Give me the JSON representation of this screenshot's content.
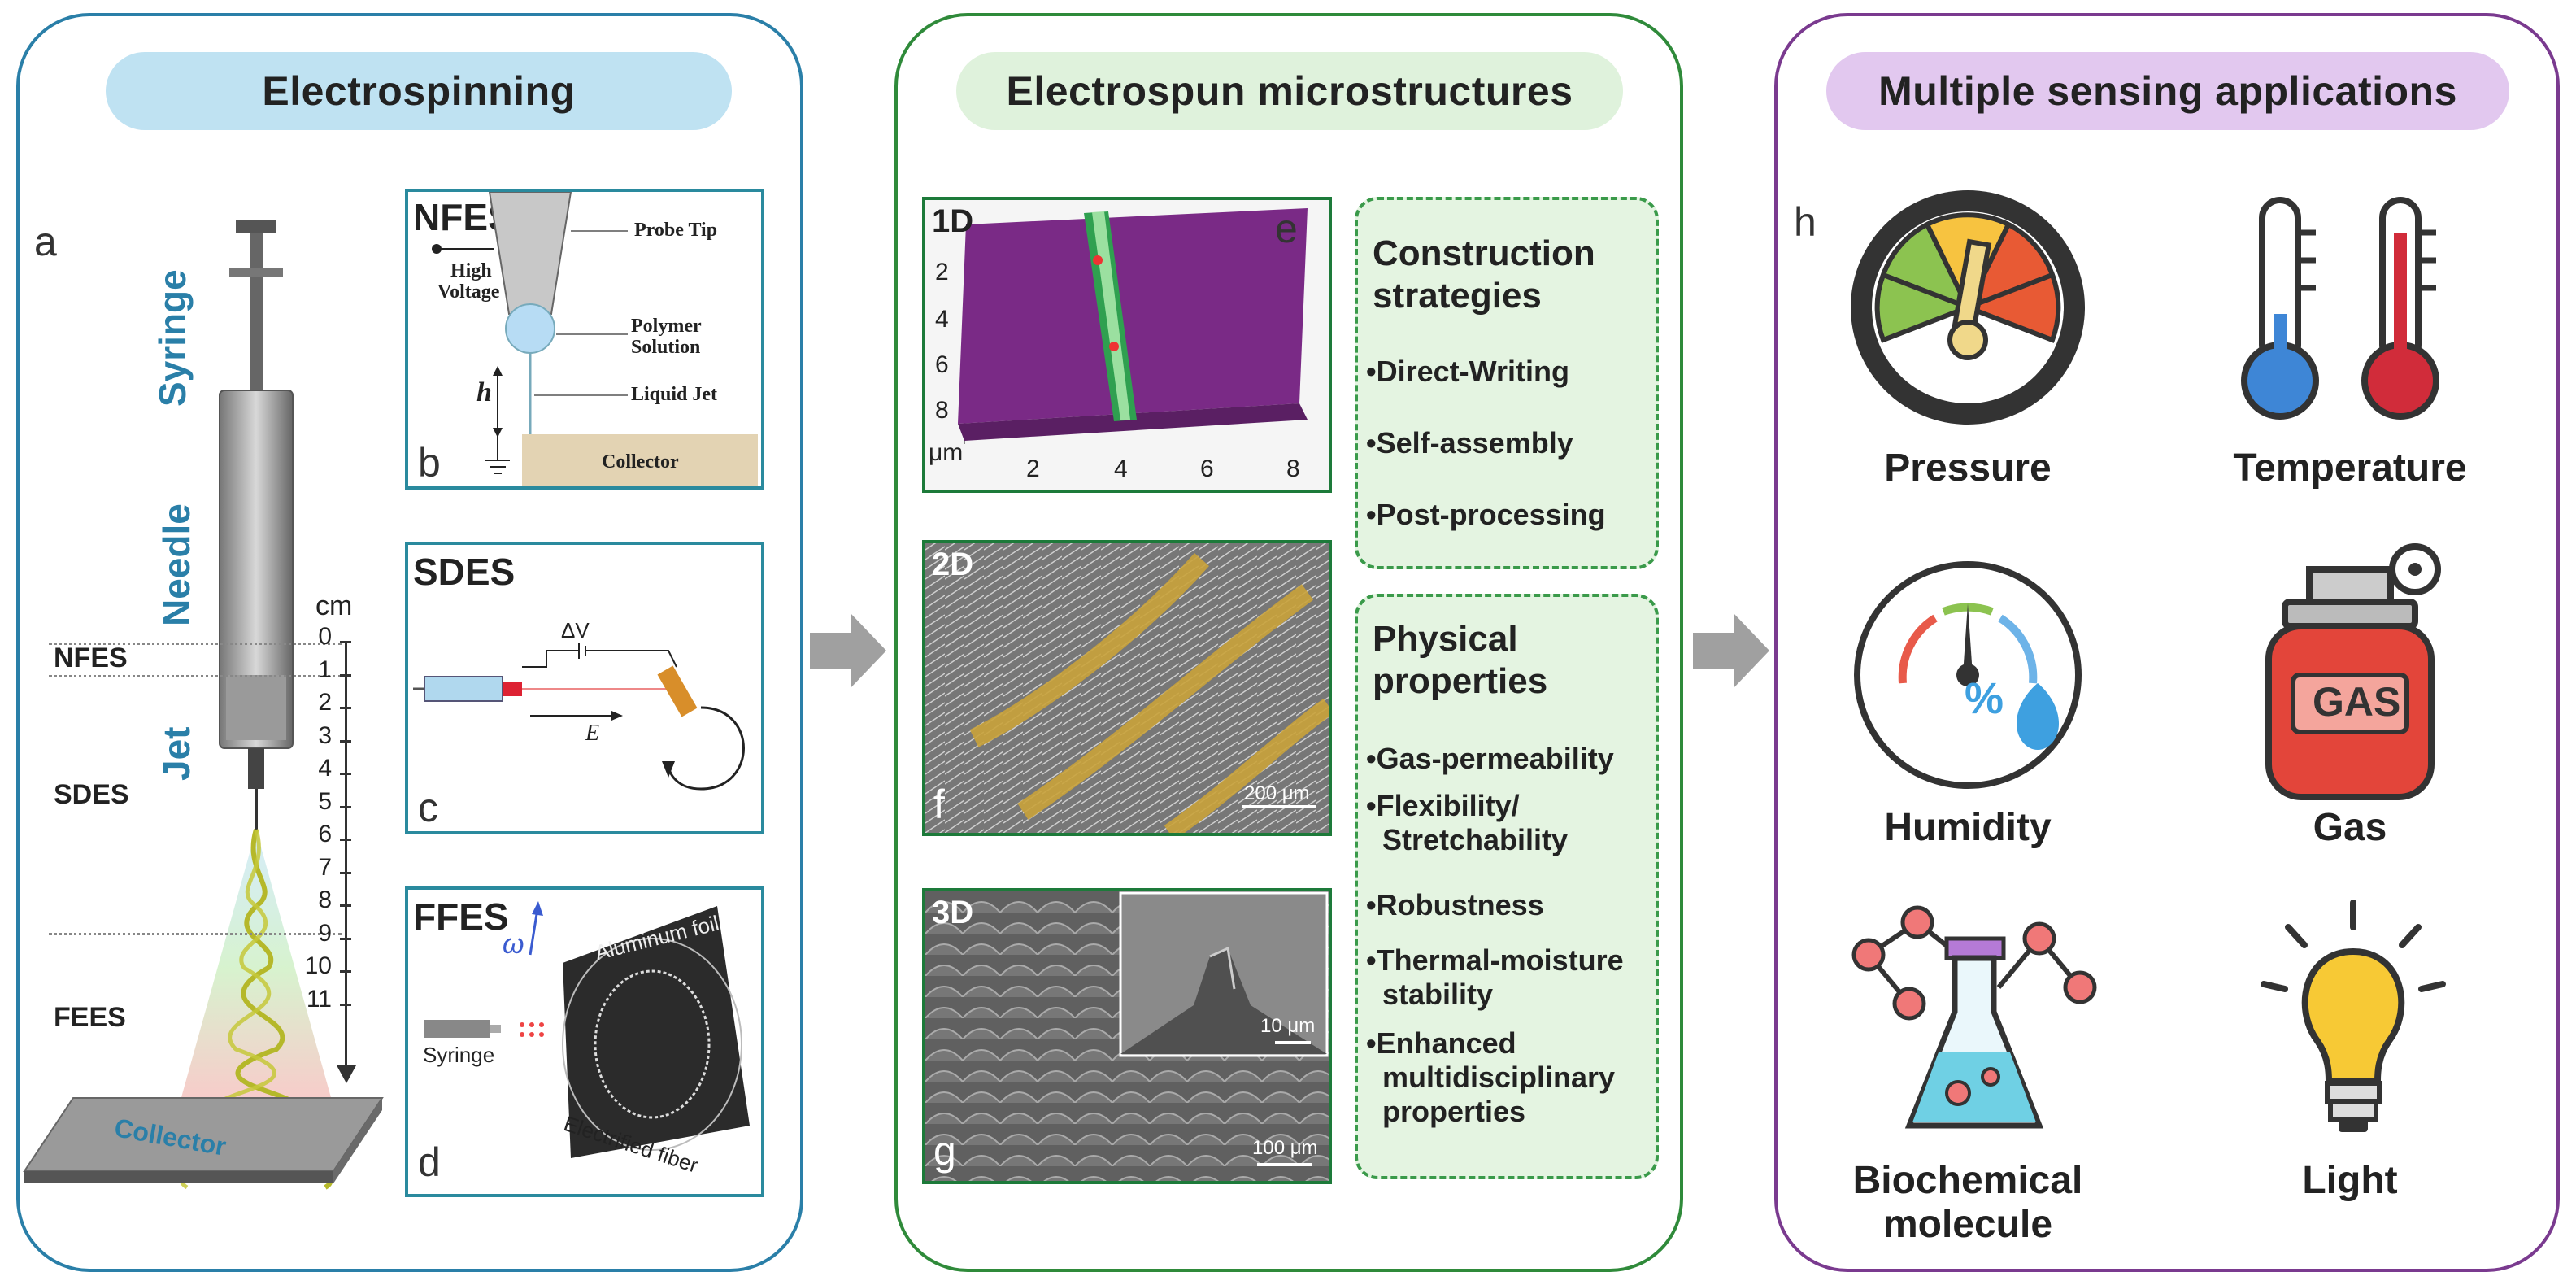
{
  "sections": {
    "electrospinning": "Electrospinning",
    "microstructures": "Electrospun microstructures",
    "applications": "Multiple sensing applications"
  },
  "panel_a": {
    "letter": "a",
    "syringe": "Syringe",
    "needle": "Needle",
    "jet": "Jet",
    "cm": "cm",
    "scale": [
      "0",
      "1",
      "2",
      "3",
      "4",
      "5",
      "6",
      "7",
      "8",
      "9",
      "10",
      "11"
    ],
    "regions": [
      "NFES",
      "SDES",
      "FEES"
    ],
    "collector": "Collector"
  },
  "panel_b": {
    "title": "NFES",
    "letter": "b",
    "high_voltage_1": "High",
    "high_voltage_2": "Voltage",
    "probe_tip": "Probe Tip",
    "polymer_1": "Polymer",
    "polymer_2": "Solution",
    "h": "h",
    "liquid_jet": "Liquid Jet",
    "collector": "Collector"
  },
  "panel_c": {
    "title": "SDES",
    "letter": "c",
    "dv": "ΔV",
    "e": "E"
  },
  "panel_d": {
    "title": "FFES",
    "letter": "d",
    "omega": "ω",
    "foil": "Aluminum foil",
    "syringe": "Syringe",
    "fiber": "Electrified fiber"
  },
  "panel_e": {
    "tag": "1D",
    "letter": "e",
    "yticks": [
      "2",
      "4",
      "6",
      "8"
    ],
    "unit": "μm",
    "xticks": [
      "2",
      "4",
      "6",
      "8"
    ]
  },
  "panel_f": {
    "tag": "2D",
    "letter": "f",
    "scalebar": "200 μm"
  },
  "panel_g": {
    "tag": "3D",
    "letter": "g",
    "inset_scalebar": "10 μm",
    "scalebar": "100 μm"
  },
  "strategies": {
    "title_1": "Construction",
    "title_2": "strategies",
    "items": [
      "•Direct-Writing",
      "•Self-assembly",
      "•Post-processing"
    ]
  },
  "properties": {
    "title_1": "Physical",
    "title_2": "properties",
    "items": [
      "•Gas-permeability",
      "•Flexibility/",
      "Stretchability",
      "•Robustness",
      "•Thermal-moisture",
      "stability",
      "•Enhanced",
      "multidisciplinary",
      "properties"
    ]
  },
  "panel_h": {
    "letter": "h",
    "labels": [
      "Pressure",
      "Temperature",
      "Humidity",
      "Gas",
      "Biochemical",
      "molecule",
      "Light"
    ],
    "humidity_symbol": "%",
    "gas_text": "GAS"
  },
  "colors": {
    "panel1_border": "#2a7fa8",
    "panel1_pill": "#bfe2f2",
    "panel2_border": "#2f8a3a",
    "panel2_pill": "#dff2dc",
    "panel3_border": "#7a3a8f",
    "panel3_pill": "#e2c8ef",
    "arrow": "#a0a0a0"
  }
}
